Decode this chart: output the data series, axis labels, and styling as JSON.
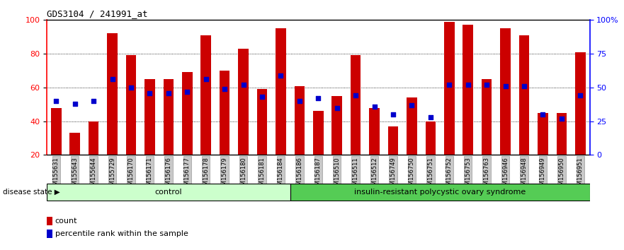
{
  "title": "GDS3104 / 241991_at",
  "samples": [
    "GSM155631",
    "GSM155643",
    "GSM155644",
    "GSM155729",
    "GSM156170",
    "GSM156171",
    "GSM156176",
    "GSM156177",
    "GSM156178",
    "GSM156179",
    "GSM156180",
    "GSM156181",
    "GSM156184",
    "GSM156186",
    "GSM156187",
    "GSM156510",
    "GSM156511",
    "GSM156512",
    "GSM156749",
    "GSM156750",
    "GSM156751",
    "GSM156752",
    "GSM156753",
    "GSM156763",
    "GSM156946",
    "GSM156948",
    "GSM156949",
    "GSM156950",
    "GSM156951"
  ],
  "counts": [
    48,
    33,
    40,
    92,
    79,
    65,
    65,
    69,
    91,
    70,
    83,
    59,
    95,
    61,
    46,
    55,
    79,
    48,
    37,
    54,
    40,
    99,
    97,
    65,
    95,
    91,
    45,
    45,
    81
  ],
  "percentile_ranks": [
    40,
    38,
    40,
    56,
    50,
    46,
    46,
    47,
    56,
    49,
    52,
    43,
    59,
    40,
    42,
    35,
    44,
    36,
    30,
    37,
    28,
    52,
    52,
    52,
    51,
    51,
    30,
    27,
    44
  ],
  "control_count": 13,
  "disease_count": 16,
  "control_label": "control",
  "disease_label": "insulin-resistant polycystic ovary syndrome",
  "disease_state_label": "disease state",
  "bar_color": "#cc0000",
  "percentile_color": "#0000cc",
  "control_bg": "#ccffcc",
  "disease_bg": "#55cc55",
  "ymin": 20,
  "ymax": 100,
  "yticks_left": [
    20,
    40,
    60,
    80,
    100
  ],
  "yticks_right_vals": [
    20,
    40,
    60,
    80,
    100
  ],
  "yticks_right_labels": [
    "0",
    "25",
    "50",
    "75",
    "100%"
  ],
  "grid_vals": [
    40,
    60,
    80
  ],
  "bar_width": 0.55
}
